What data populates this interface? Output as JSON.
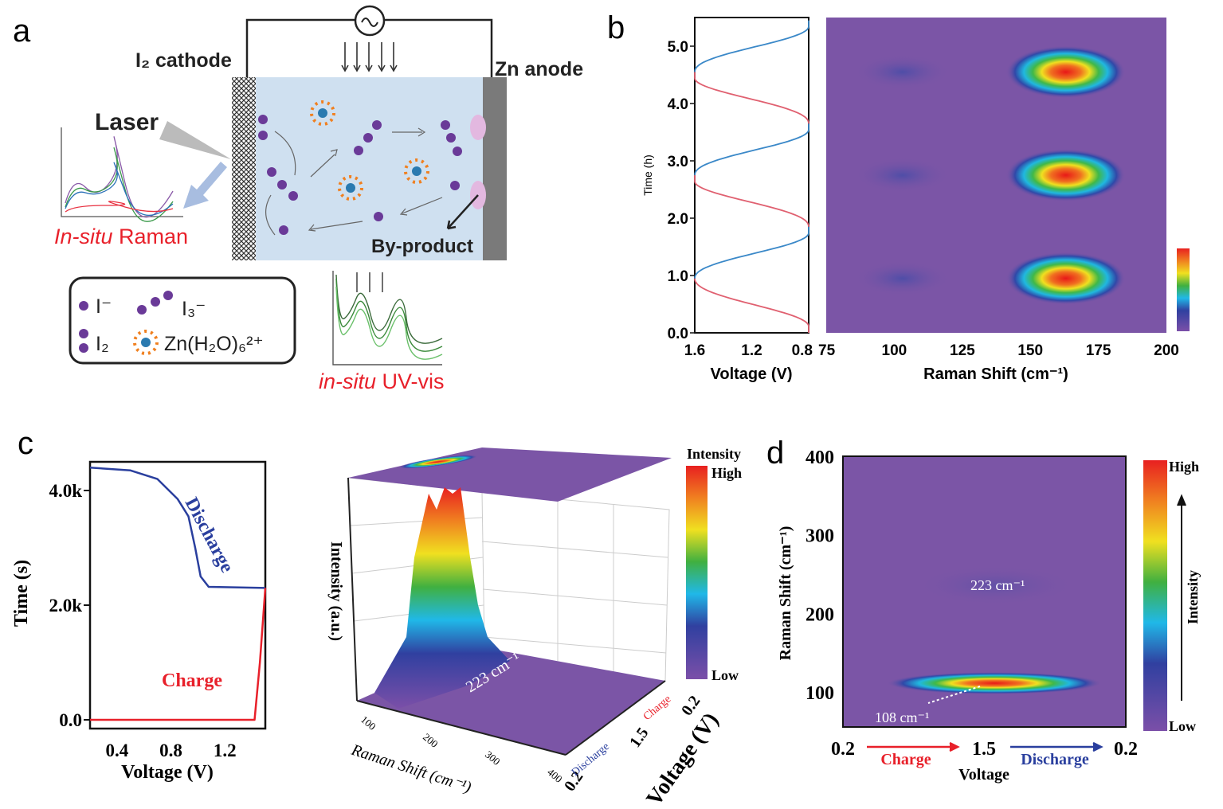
{
  "panels": {
    "a": {
      "label": "a",
      "cathode": "I₂ cathode",
      "anode": "Zn anode",
      "laser": "Laser",
      "raman_italic": "In-situ",
      "raman_rest": " Raman",
      "byproduct": "By-product",
      "uv_italic": "in-situ",
      "uv_rest": " UV-vis",
      "legend": {
        "iodide": "I⁻",
        "triiodide": "I₃⁻",
        "iodine": "I₂",
        "zinc": "Zn(H₂O)₆²⁺"
      }
    },
    "b": {
      "label": "b"
    },
    "c": {
      "label": "c"
    },
    "d": {
      "label": "d"
    }
  },
  "colors": {
    "red": "#e8202a",
    "blue": "#2a3f9e",
    "heat_bg": "#7b55a6",
    "cell": "#cfe0f0",
    "anode": "#7a7a7a"
  },
  "chart_data": [
    {
      "id": "b-voltage",
      "type": "line",
      "xlabel": "Voltage (V)",
      "ylabel": "Time (h)",
      "xlim": [
        1.6,
        0.8
      ],
      "ylim": [
        0,
        5.5
      ],
      "xticks": [
        "1.6",
        "1.2",
        "0.8"
      ],
      "yticks": [
        "0.0",
        "1.0",
        "2.0",
        "3.0",
        "4.0",
        "5.0"
      ],
      "series": [
        {
          "segment": "discharge",
          "color": "#e06070",
          "from": [
            1.6,
            0.95
          ],
          "to": [
            0.8,
            0.0
          ]
        },
        {
          "segment": "charge",
          "color": "#3a88c8",
          "from": [
            1.6,
            0.95
          ],
          "to": [
            0.8,
            1.85
          ]
        },
        {
          "segment": "discharge",
          "color": "#e06070",
          "from": [
            0.8,
            1.85
          ],
          "to": [
            1.6,
            2.75
          ]
        },
        {
          "segment": "charge",
          "color": "#3a88c8",
          "from": [
            1.6,
            2.75
          ],
          "to": [
            0.8,
            3.65
          ]
        },
        {
          "segment": "discharge",
          "color": "#e06070",
          "from": [
            0.8,
            3.65
          ],
          "to": [
            1.6,
            4.55
          ]
        },
        {
          "segment": "charge",
          "color": "#3a88c8",
          "from": [
            1.6,
            4.55
          ],
          "to": [
            0.8,
            5.45
          ]
        }
      ]
    },
    {
      "id": "b-heatmap",
      "type": "heatmap",
      "xlabel": "Raman Shift (cm⁻¹)",
      "xlim": [
        75,
        200
      ],
      "ylim": [
        0,
        5.5
      ],
      "xticks": [
        "75",
        "100",
        "125",
        "150",
        "175",
        "200"
      ],
      "peaks": [
        {
          "x": 163,
          "y": 0.95,
          "intensity": 1.0
        },
        {
          "x": 163,
          "y": 2.75,
          "intensity": 0.95
        },
        {
          "x": 163,
          "y": 4.55,
          "intensity": 0.95
        },
        {
          "x": 103,
          "y": 0.95,
          "intensity": 0.2
        },
        {
          "x": 103,
          "y": 2.75,
          "intensity": 0.2
        },
        {
          "x": 103,
          "y": 4.55,
          "intensity": 0.2
        }
      ]
    },
    {
      "id": "c-profile",
      "type": "line",
      "xlabel": "Voltage (V)",
      "ylabel": "Time (s)",
      "xlim": [
        0.2,
        1.5
      ],
      "ylim": [
        0,
        4.7
      ],
      "xticks": [
        "0.4",
        "0.8",
        "1.2"
      ],
      "yticks": [
        "0.0",
        "2.0k",
        "4.0k"
      ],
      "series": [
        {
          "name": "Discharge",
          "color": "#2a3f9e",
          "points": [
            [
              0.2,
              4.4
            ],
            [
              0.5,
              4.35
            ],
            [
              0.7,
              4.2
            ],
            [
              0.85,
              3.85
            ],
            [
              0.93,
              3.55
            ],
            [
              0.98,
              3.0
            ],
            [
              1.02,
              2.5
            ],
            [
              1.08,
              2.32
            ],
            [
              1.5,
              2.3
            ]
          ]
        },
        {
          "name": "Charge",
          "color": "#e8202a",
          "points": [
            [
              0.2,
              0.0
            ],
            [
              1.42,
              0.0
            ],
            [
              1.46,
              1.0
            ],
            [
              1.5,
              2.3
            ]
          ]
        }
      ]
    },
    {
      "id": "c-3d",
      "type": "area",
      "xlabel": "Raman Shift (cm⁻¹)",
      "ylabel": "Intensity (a.u.)",
      "zlabel": "Voltage (V)",
      "xticks": [
        "100",
        "200",
        "300",
        "400"
      ],
      "zticks": [
        "0.2",
        "1.5",
        "0.2"
      ],
      "zsegments": [
        "Discharge",
        "Charge"
      ],
      "annotation": "223 cm⁻¹",
      "colorbar": {
        "title": "Intensity",
        "high": "High",
        "low": "Low"
      }
    },
    {
      "id": "d-heatmap",
      "type": "heatmap",
      "xlabel": "Voltage",
      "ylabel": "Raman Shift (cm⁻¹)",
      "ylim": [
        80,
        400
      ],
      "xticks": [
        "0.2",
        "1.5",
        "0.2"
      ],
      "yticks": [
        "100",
        "200",
        "300",
        "400"
      ],
      "xsegments": [
        {
          "label": "Charge",
          "color": "#e8202a"
        },
        {
          "label": "Discharge",
          "color": "#2a3f9e"
        }
      ],
      "peaks": [
        {
          "x": 1.5,
          "y": 108,
          "intensity": 1.0
        }
      ],
      "annotations": [
        "223 cm⁻¹",
        "108 cm⁻¹"
      ],
      "colorbar": {
        "title": "Intensity",
        "high": "High",
        "low": "Low"
      }
    }
  ]
}
